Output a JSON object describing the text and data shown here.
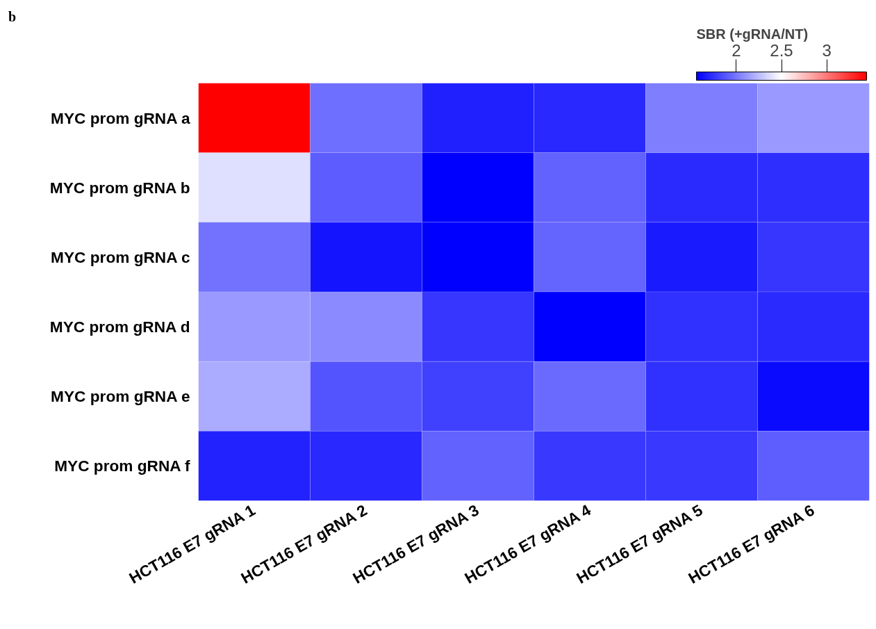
{
  "chart_data": {
    "type": "heatmap",
    "annotations": [
      "b"
    ],
    "clabel": "SBR (+gRNA/NT)",
    "categories": [
      "HCT116 E7 gRNA 1",
      "HCT116 E7 gRNA 2",
      "HCT116 E7 gRNA 3",
      "HCT116 E7 gRNA 4",
      "HCT116 E7 gRNA 5",
      "HCT116 E7 gRNA 6"
    ],
    "y_categories": [
      "MYC prom gRNA a",
      "MYC prom gRNA b",
      "MYC prom gRNA c",
      "MYC prom gRNA d",
      "MYC prom gRNA e",
      "MYC prom gRNA f"
    ],
    "cells": [
      [
        3.44,
        1.97,
        1.68,
        1.71,
        2.03,
        2.12
      ],
      [
        2.38,
        1.9,
        1.56,
        1.92,
        1.72,
        1.73
      ],
      [
        1.98,
        1.64,
        1.56,
        1.93,
        1.66,
        1.76
      ],
      [
        2.12,
        2.07,
        1.76,
        1.56,
        1.74,
        1.72
      ],
      [
        2.19,
        1.87,
        1.8,
        1.95,
        1.74,
        1.6
      ],
      [
        1.69,
        1.71,
        1.92,
        1.77,
        1.77,
        1.91
      ]
    ],
    "clim": [
      1.56,
      3.44
    ],
    "cticks": [
      2,
      2.5,
      3
    ]
  }
}
